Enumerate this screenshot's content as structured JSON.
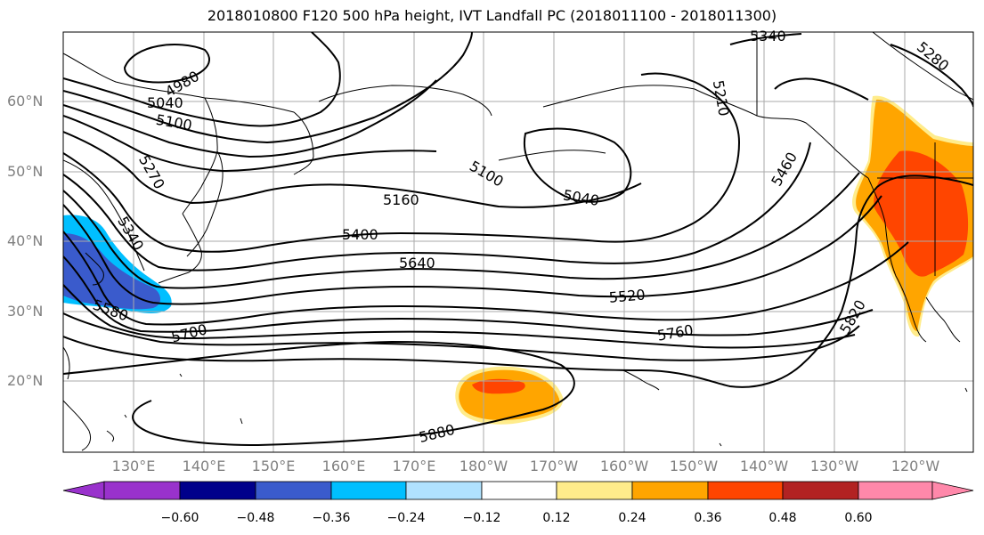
{
  "title": "2018010800 F120 500 hPa height, IVT Landfall PC (2018011100 - 2018011300)",
  "lat_labels": [
    "60°N",
    "50°N",
    "40°N",
    "30°N",
    "20°N"
  ],
  "lon_labels": [
    "130°E",
    "140°E",
    "150°E",
    "160°E",
    "170°E",
    "180°W",
    "170°W",
    "160°W",
    "150°W",
    "140°W",
    "130°W",
    "120°W"
  ],
  "contour_labels": [
    "5040",
    "4980",
    "5100",
    "5270",
    "5340",
    "5580",
    "5700",
    "5160",
    "5400",
    "5640",
    "5100",
    "5040",
    "5520",
    "5760",
    "5880",
    "5210",
    "5460",
    "5340",
    "5280",
    "5820"
  ],
  "colorbar": {
    "colors": [
      "#9932CC",
      "#00008B",
      "#3A5BCC",
      "#00BFFF",
      "#B0E2FF",
      "#FFFFFF",
      "#FFEC8B",
      "#FFA500",
      "#FF4500",
      "#B22222",
      "#FF88AA"
    ],
    "tick_labels": [
      "−0.60",
      "−0.48",
      "−0.36",
      "−0.24",
      "−0.12",
      "0.12",
      "0.24",
      "0.36",
      "0.48",
      "0.60"
    ]
  }
}
